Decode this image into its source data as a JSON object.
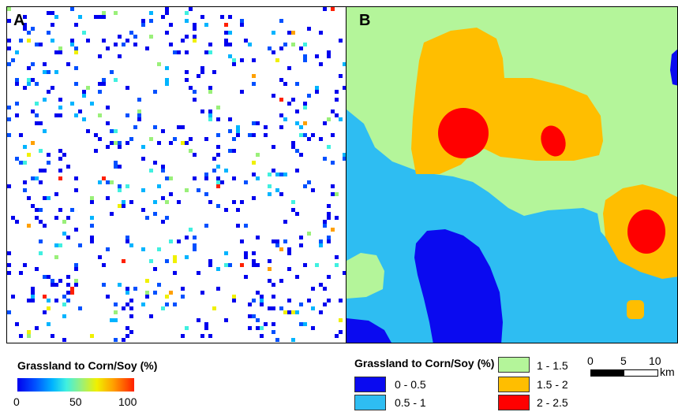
{
  "panel_a": {
    "letter": "A",
    "legend_title": "Grassland to Corn/Soy (%)",
    "ramp_ticks": [
      "0",
      "50",
      "100"
    ]
  },
  "panel_b": {
    "letter": "B",
    "legend_title": "Grassland to Corn/Soy (%)",
    "classes": [
      {
        "label": "0 - 0.5",
        "color": "#0a0af0"
      },
      {
        "label": "0.5 - 1",
        "color": "#2ebdf2"
      },
      {
        "label": "1 - 1.5",
        "color": "#b4f59a"
      },
      {
        "label": "1.5 - 2",
        "color": "#ffbe00"
      },
      {
        "label": "2 - 2.5",
        "color": "#ff0000"
      }
    ]
  },
  "scale_bar": {
    "ticks": [
      "0",
      "5",
      "10"
    ],
    "unit": "km"
  },
  "colors": {
    "ramp": [
      "#0000ee",
      "#0050ff",
      "#00b4ff",
      "#40f0e0",
      "#9af07a",
      "#f0f000",
      "#ffa000",
      "#ff2000"
    ]
  }
}
